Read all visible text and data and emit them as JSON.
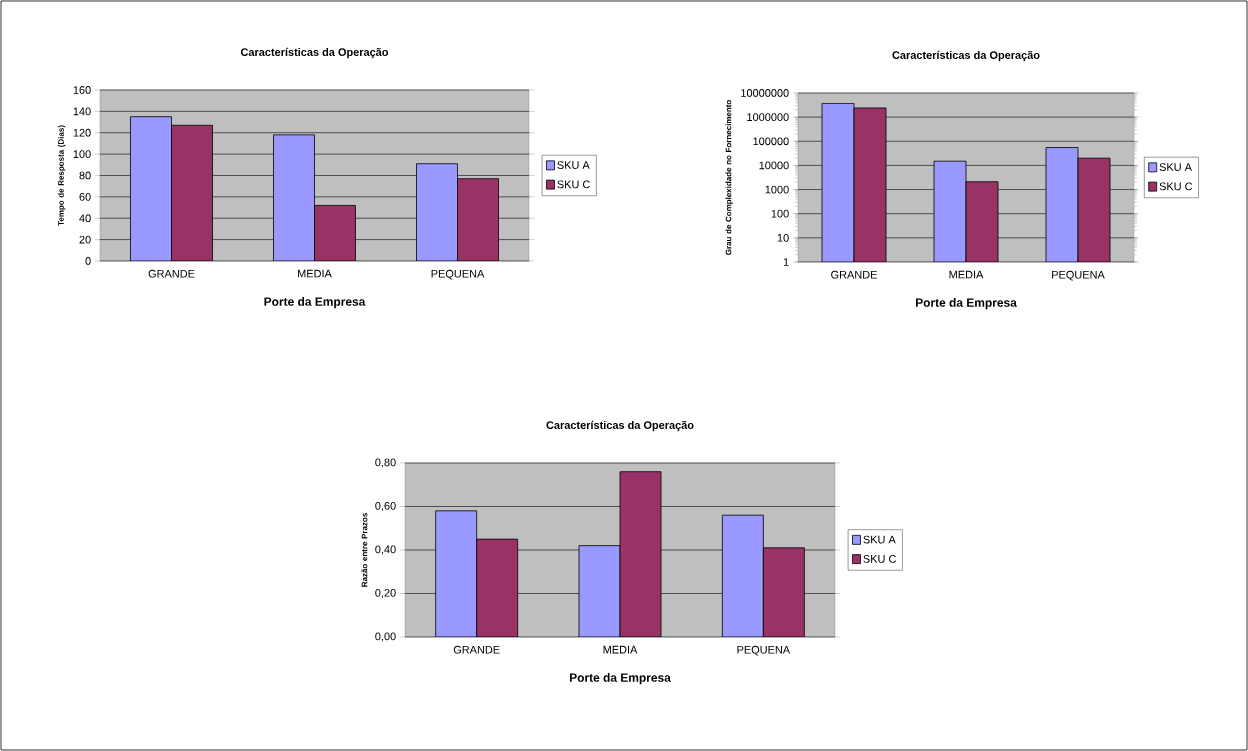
{
  "chart_data": [
    {
      "type": "bar",
      "title": "Características da Operação",
      "xlabel": "Porte da Empresa",
      "ylabel": "Tempo de Resposta (Dias)",
      "categories": [
        "GRANDE",
        "MEDIA",
        "PEQUENA"
      ],
      "series": [
        {
          "name": "SKU A",
          "color": "#9999ff",
          "values": [
            135,
            118,
            91
          ]
        },
        {
          "name": "SKU C",
          "color": "#993366",
          "values": [
            127,
            52,
            77
          ]
        }
      ],
      "ylim": [
        0,
        160
      ],
      "yticks": [
        0,
        20,
        40,
        60,
        80,
        100,
        120,
        140,
        160
      ],
      "grid": "y",
      "legend": "right"
    },
    {
      "type": "bar",
      "title": "Características da Operação",
      "xlabel": "Porte da Empresa",
      "ylabel": "Grau de Complexidade no Fornecimento",
      "categories": [
        "GRANDE",
        "MEDIA",
        "PEQUENA"
      ],
      "series": [
        {
          "name": "SKU A",
          "color": "#9999ff",
          "values": [
            3700000,
            15000,
            55000
          ]
        },
        {
          "name": "SKU C",
          "color": "#993366",
          "values": [
            2400000,
            2100,
            20000
          ]
        }
      ],
      "log": true,
      "ylim": [
        1,
        10000000
      ],
      "yticks": [
        1,
        10,
        100,
        1000,
        10000,
        100000,
        1000000,
        10000000
      ],
      "grid": "y",
      "legend": "right"
    },
    {
      "type": "bar",
      "title": "Características da Operação",
      "xlabel": "Porte da Empresa",
      "ylabel": "Razão entre Prazos",
      "categories": [
        "GRANDE",
        "MEDIA",
        "PEQUENA"
      ],
      "series": [
        {
          "name": "SKU A",
          "color": "#9999ff",
          "values": [
            0.58,
            0.42,
            0.56
          ]
        },
        {
          "name": "SKU C",
          "color": "#993366",
          "values": [
            0.45,
            0.76,
            0.41
          ]
        }
      ],
      "ylim": [
        0,
        0.8
      ],
      "yticks": [
        {
          "value": 0,
          "label": "0,00"
        },
        {
          "value": 0.2,
          "label": "0,20"
        },
        {
          "value": 0.4,
          "label": "0,40"
        },
        {
          "value": 0.6,
          "label": "0,60"
        },
        {
          "value": 0.8,
          "label": "0,80"
        }
      ],
      "grid": "y",
      "legend": "right"
    }
  ]
}
